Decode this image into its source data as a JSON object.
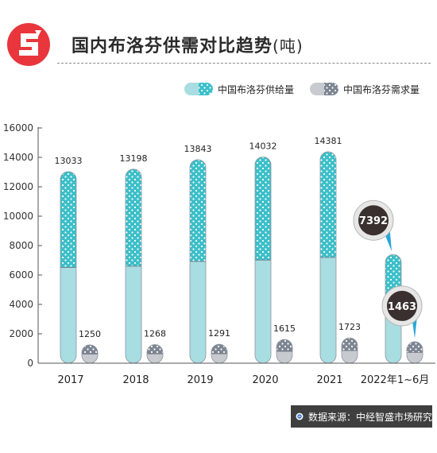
{
  "header": {
    "title": "国内布洛芬供需对比趋势",
    "title_unit": "(吨)"
  },
  "chart_data": {
    "type": "bar",
    "title": "国内布洛芬供需对比趋势(吨)",
    "categories": [
      "2017",
      "2018",
      "2019",
      "2020",
      "2021",
      "2022年1~6月"
    ],
    "series": [
      {
        "name": "中国布洛芬供给量",
        "values": [
          13033,
          13198,
          13843,
          14032,
          14381,
          7392
        ],
        "color": "#3bbfc9"
      },
      {
        "name": "中国布洛芬需求量",
        "values": [
          1250,
          1268,
          1291,
          1615,
          1723,
          1463
        ],
        "color": "#7d8592"
      }
    ],
    "yticks": [
      0,
      2000,
      4000,
      6000,
      8000,
      10000,
      12000,
      14000,
      16000
    ],
    "ylim": [
      0,
      16000
    ],
    "grid": false,
    "legend_position": "top-right",
    "highlight_labels": [
      "7392",
      "1463"
    ]
  },
  "source": {
    "text": "数据来源：中经智盛市场研究"
  },
  "colors": {
    "supply_top": "#3bbfc9",
    "supply_bottom": "#a8dde2",
    "demand_top": "#7d8592",
    "demand_bottom": "#c7cacf",
    "brand_red": "#e8363c",
    "callout": "#3a3030"
  }
}
